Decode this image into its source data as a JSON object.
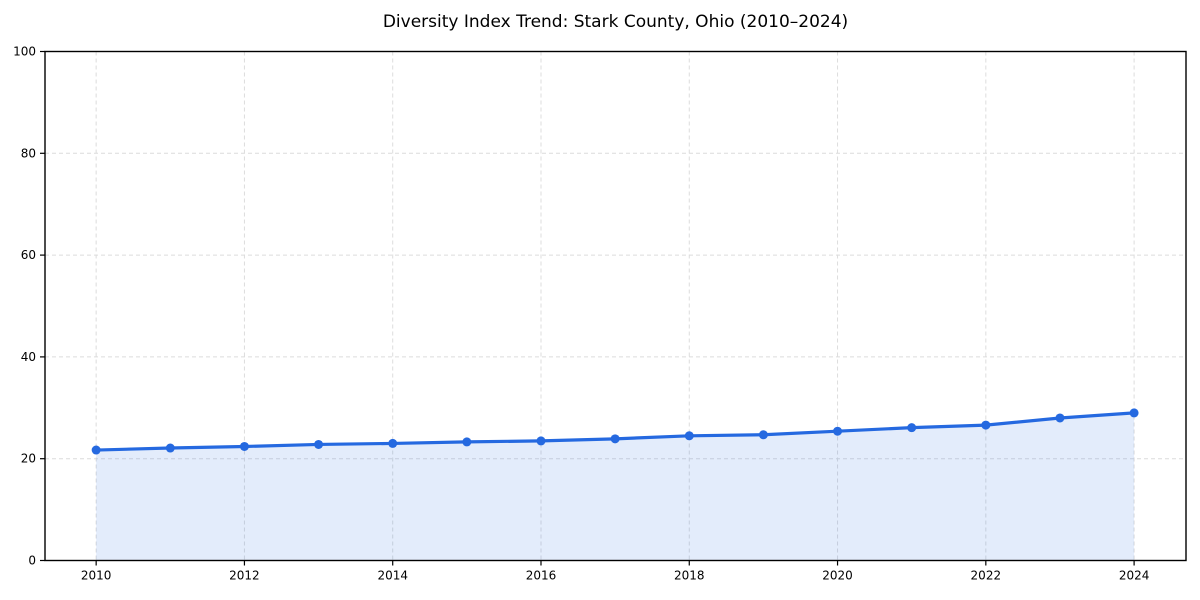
{
  "page": {
    "background_color": "#ffffff"
  },
  "chart_data": {
    "type": "area",
    "title": "Diversity Index Trend: Stark County, Ohio (2010–2024)",
    "x": [
      2010,
      2011,
      2012,
      2013,
      2014,
      2015,
      2016,
      2017,
      2018,
      2019,
      2020,
      2021,
      2022,
      2023,
      2024
    ],
    "series": [
      {
        "name": "Diversity Index",
        "values": [
          21.7,
          22.1,
          22.4,
          22.8,
          23.0,
          23.3,
          23.5,
          23.9,
          24.5,
          24.7,
          25.4,
          26.1,
          26.6,
          28.0,
          29.0
        ]
      }
    ],
    "xlabel": "",
    "ylabel": "",
    "xlim": [
      2009.31,
      2024.7
    ],
    "ylim": [
      0,
      100
    ],
    "xticks": [
      2010,
      2012,
      2014,
      2016,
      2018,
      2020,
      2022,
      2024
    ],
    "yticks": [
      0,
      20,
      40,
      60,
      80,
      100
    ],
    "grid": true,
    "grid_style": "dashed",
    "legend_position": "none",
    "line_color": "#2569e0",
    "marker": "circle",
    "marker_color": "#2569e0",
    "fill_color": "#2569e0",
    "fill_opacity": 0.13,
    "grid_color": "#dcdcdc",
    "axis_color": "#000000",
    "tick_label_color": "#000000",
    "title_color": "#000000"
  }
}
